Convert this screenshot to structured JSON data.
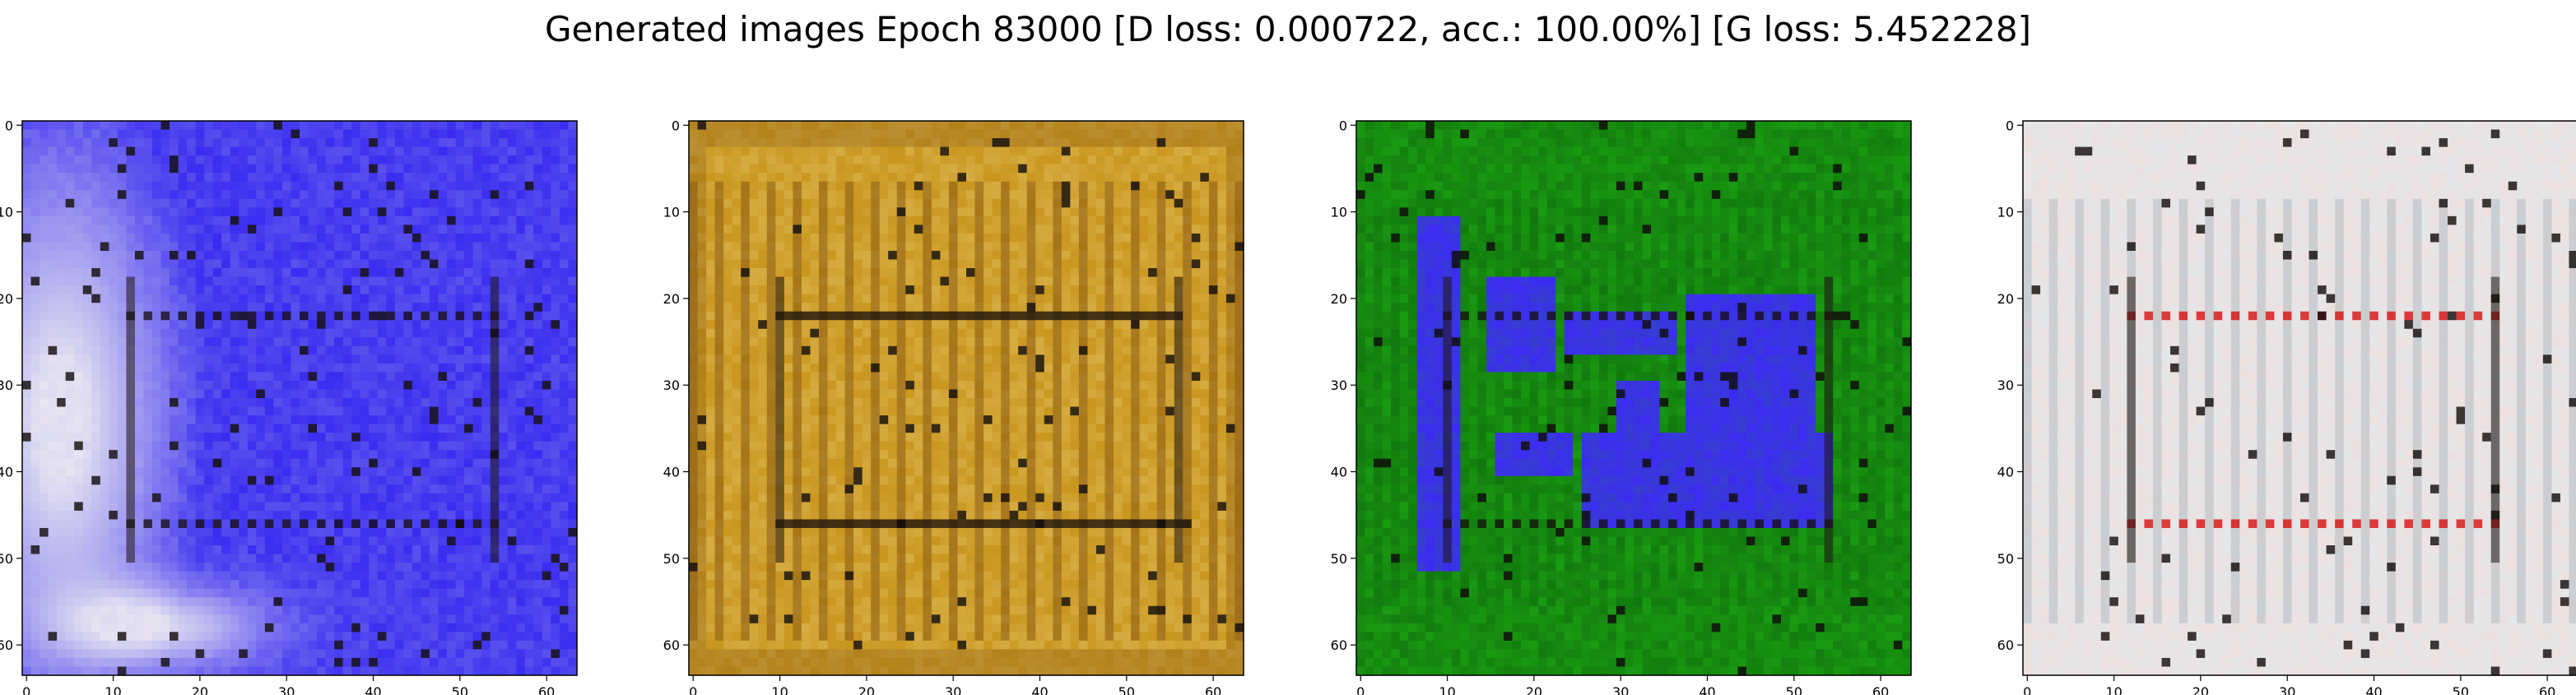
{
  "title": "Generated images Epoch 83000 [D loss: 0.000722, acc.: 100.00%] [G loss: 5.452228]",
  "chart_data": [
    {
      "type": "heatmap",
      "series_index": 0,
      "xlim": [
        0,
        63
      ],
      "ylim": [
        63,
        0
      ],
      "x_ticks": [
        0,
        10,
        20,
        30,
        40,
        50,
        60
      ],
      "y_ticks": [
        0,
        10,
        20,
        30,
        40,
        50,
        60
      ],
      "grid": false,
      "dominant_colors": [
        "#3a2cf0",
        "#e8e4f2",
        "#b8c0e8"
      ],
      "frame_lines": [
        12,
        22,
        46,
        54
      ],
      "blob_regions": []
    },
    {
      "type": "heatmap",
      "series_index": 1,
      "xlim": [
        0,
        63
      ],
      "ylim": [
        63,
        0
      ],
      "x_ticks": [
        0,
        10,
        20,
        30,
        40,
        50,
        60
      ],
      "y_ticks": [
        0,
        10,
        20,
        30,
        40,
        50,
        60
      ],
      "grid": false,
      "dominant_colors": [
        "#c9961e",
        "#8a5a12",
        "#e6c870"
      ],
      "frame_lines": [
        10,
        22,
        46,
        56
      ],
      "blob_regions": []
    },
    {
      "type": "heatmap",
      "series_index": 2,
      "xlim": [
        0,
        63
      ],
      "ylim": [
        63,
        0
      ],
      "x_ticks": [
        0,
        10,
        20,
        30,
        40,
        50,
        60
      ],
      "y_ticks": [
        0,
        10,
        20,
        30,
        40,
        50,
        60
      ],
      "grid": false,
      "dominant_colors": [
        "#1a9a12",
        "#0e6a0c",
        "#3c2cf2"
      ],
      "frame_lines": [
        10,
        22,
        46,
        54
      ],
      "blob_regions": [
        {
          "x0": 7,
          "x1": 11,
          "y0": 11,
          "y1": 51
        },
        {
          "x0": 15,
          "x1": 22,
          "y0": 18,
          "y1": 28
        },
        {
          "x0": 24,
          "x1": 36,
          "y0": 22,
          "y1": 26
        },
        {
          "x0": 38,
          "x1": 52,
          "y0": 20,
          "y1": 40
        },
        {
          "x0": 26,
          "x1": 54,
          "y0": 36,
          "y1": 46
        },
        {
          "x0": 16,
          "x1": 24,
          "y0": 36,
          "y1": 40
        },
        {
          "x0": 30,
          "x1": 34,
          "y0": 30,
          "y1": 36
        }
      ]
    },
    {
      "type": "heatmap",
      "series_index": 3,
      "xlim": [
        0,
        63
      ],
      "ylim": [
        63,
        0
      ],
      "x_ticks": [
        0,
        10,
        20,
        30,
        40,
        50,
        60
      ],
      "y_ticks": [
        0,
        10,
        20,
        30,
        40,
        50,
        60
      ],
      "grid": false,
      "dominant_colors": [
        "#e4e6e8",
        "#f2dede",
        "#d81010"
      ],
      "frame_lines": [
        12,
        22,
        46,
        54
      ],
      "blob_regions": []
    }
  ]
}
